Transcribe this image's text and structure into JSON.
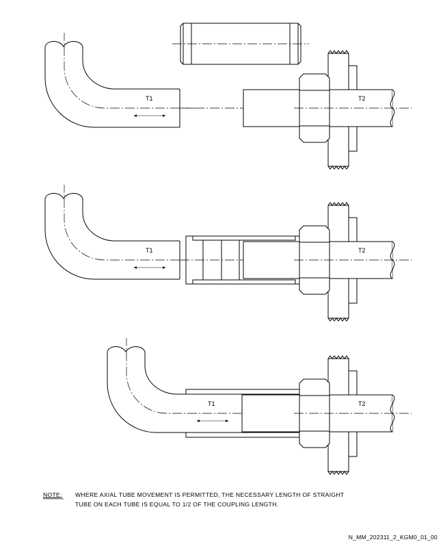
{
  "labels": {
    "tube1": "T1",
    "tube2": "T2"
  },
  "note": {
    "label": "NOTE:",
    "line1": "WHERE AXIAL TUBE MOVEMENT IS PERMITTED, THE NECESSARY LENGTH OF STRAIGHT",
    "line2": "TUBE ON EACH TUBE IS EQUAL TO 1/2 OF THE COUPLING LENGTH."
  },
  "reference_code": "N_MM_202311_2_KGM0_01_00"
}
